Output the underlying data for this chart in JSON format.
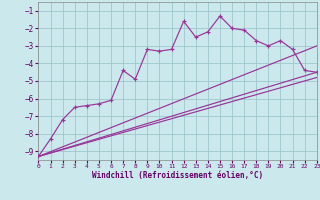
{
  "xlabel": "Windchill (Refroidissement éolien,°C)",
  "background_color": "#cbe8ec",
  "grid_color": "#9ec8cc",
  "line_color": "#993399",
  "xlim": [
    0,
    23
  ],
  "ylim": [
    -9.5,
    -0.5
  ],
  "yticks": [
    -9,
    -8,
    -7,
    -6,
    -5,
    -4,
    -3,
    -2,
    -1
  ],
  "xticks": [
    0,
    1,
    2,
    3,
    4,
    5,
    6,
    7,
    8,
    9,
    10,
    11,
    12,
    13,
    14,
    15,
    16,
    17,
    18,
    19,
    20,
    21,
    22,
    23
  ],
  "x": [
    0,
    1,
    2,
    3,
    4,
    5,
    6,
    7,
    8,
    9,
    10,
    11,
    12,
    13,
    14,
    15,
    16,
    17,
    18,
    19,
    20,
    21,
    22,
    23
  ],
  "y_main": [
    -9.3,
    -8.3,
    -7.2,
    -6.5,
    -6.4,
    -6.3,
    -6.1,
    -4.4,
    -4.9,
    -3.2,
    -3.3,
    -3.2,
    -1.6,
    -2.5,
    -2.2,
    -1.3,
    -2.0,
    -2.1,
    -2.7,
    -3.0,
    -2.7,
    -3.2,
    -4.4,
    -4.5
  ],
  "trend_lines": [
    {
      "x0": 0,
      "y0": -9.3,
      "x1": 23,
      "y1": -4.5
    },
    {
      "x0": 0,
      "y0": -9.3,
      "x1": 23,
      "y1": -3.0
    },
    {
      "x0": 0,
      "y0": -9.3,
      "x1": 23,
      "y1": -4.8
    }
  ]
}
